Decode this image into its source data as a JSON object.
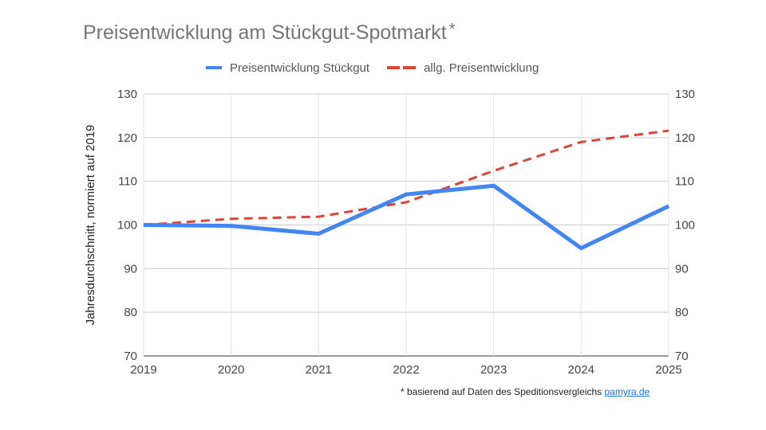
{
  "chart_data": {
    "type": "line",
    "title": "Preisentwicklung am Stückgut-Spotmarkt",
    "title_marker": "*",
    "ylabel": "Jahresdurchschnitt, normiert auf 2019",
    "xlabel": "",
    "x": [
      "2019",
      "2020",
      "2021",
      "2022",
      "2023",
      "2024",
      "2025"
    ],
    "ylim": [
      70,
      130
    ],
    "yticks": [
      70,
      80,
      90,
      100,
      110,
      120,
      130
    ],
    "grid": true,
    "legend_position": "top",
    "series": [
      {
        "name": "Preisentwicklung Stückgut",
        "color": "#4285f4",
        "style": "solid",
        "values": [
          100,
          99.8,
          98,
          107,
          109,
          94.7,
          104.3
        ]
      },
      {
        "name": "allg. Preisentwicklung",
        "color": "#db4437",
        "style": "dashed",
        "values": [
          100,
          101.4,
          101.9,
          105.2,
          112.4,
          119,
          121.6
        ]
      }
    ]
  },
  "footnote": {
    "text": "* basierend auf Daten des Speditionsvergleichs ",
    "link_text": "pamyra.de"
  }
}
